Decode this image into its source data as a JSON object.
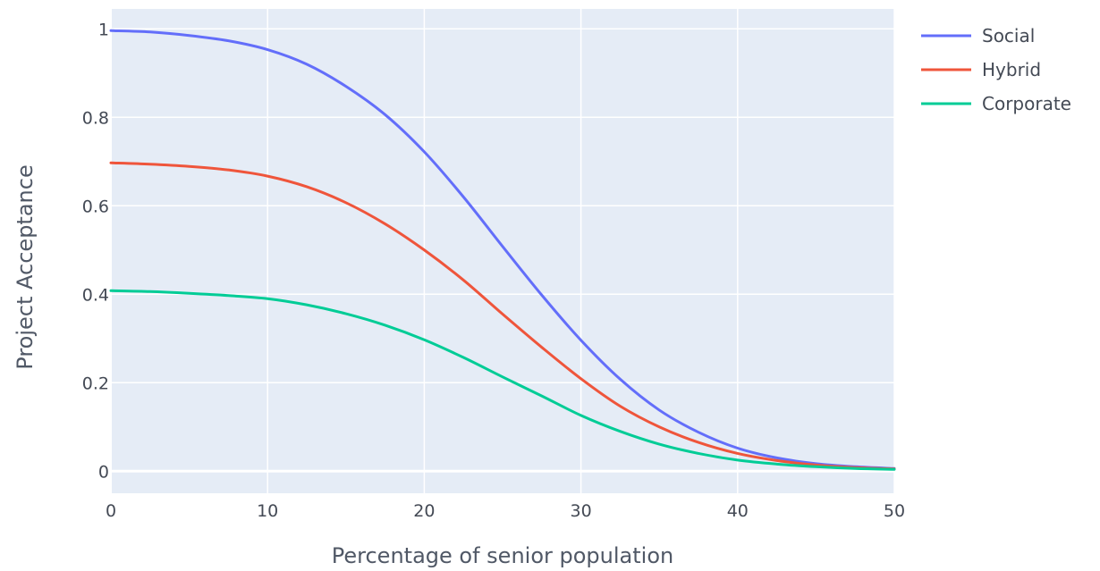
{
  "chart_data": {
    "type": "line",
    "xlabel": "Percentage of senior population",
    "ylabel": "Project Acceptance",
    "xlim": [
      0,
      50
    ],
    "ylim": [
      -0.05,
      1.045
    ],
    "x_ticks": [
      0,
      10,
      20,
      30,
      40,
      50
    ],
    "x_tick_labels": [
      "0",
      "10",
      "20",
      "30",
      "40",
      "50"
    ],
    "y_ticks": [
      0,
      0.2,
      0.4,
      0.6,
      0.8,
      1
    ],
    "y_tick_labels": [
      "0",
      "0.2",
      "0.4",
      "0.6",
      "0.8",
      "1"
    ],
    "grid": true,
    "legend_position": "top-right",
    "plot_background": "#e5ecf6",
    "grid_color": "#ffffff",
    "x": [
      0,
      2.5,
      5,
      7.5,
      10,
      12.5,
      15,
      17.5,
      20,
      22.5,
      25,
      27.5,
      30,
      32.5,
      35,
      37.5,
      40,
      42.5,
      45,
      47.5,
      50
    ],
    "series": [
      {
        "name": "Social",
        "color": "#636efa",
        "values": [
          0.996,
          0.993,
          0.985,
          0.973,
          0.953,
          0.92,
          0.87,
          0.806,
          0.722,
          0.62,
          0.508,
          0.398,
          0.296,
          0.208,
          0.138,
          0.088,
          0.052,
          0.03,
          0.017,
          0.01,
          0.006
        ]
      },
      {
        "name": "Hybrid",
        "color": "#ef553b",
        "values": [
          0.697,
          0.694,
          0.689,
          0.681,
          0.667,
          0.643,
          0.607,
          0.559,
          0.5,
          0.432,
          0.355,
          0.28,
          0.209,
          0.147,
          0.1,
          0.065,
          0.04,
          0.024,
          0.014,
          0.008,
          0.005
        ]
      },
      {
        "name": "Corporate",
        "color": "#00cc96",
        "values": [
          0.408,
          0.406,
          0.402,
          0.397,
          0.39,
          0.376,
          0.356,
          0.33,
          0.297,
          0.257,
          0.213,
          0.17,
          0.126,
          0.09,
          0.061,
          0.04,
          0.025,
          0.016,
          0.01,
          0.006,
          0.004
        ]
      }
    ]
  }
}
